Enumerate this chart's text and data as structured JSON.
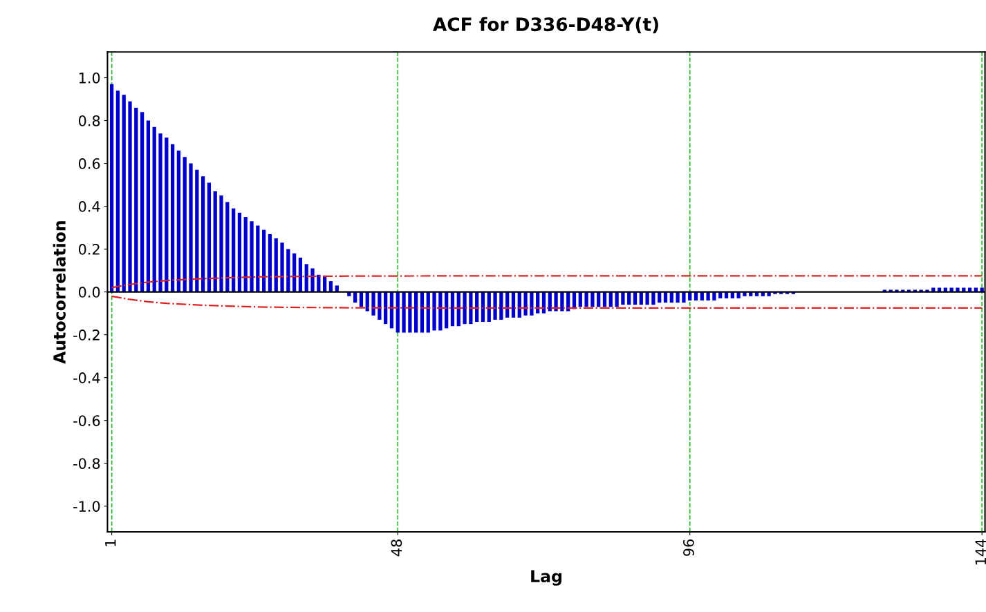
{
  "chart_data": {
    "type": "bar",
    "title": "ACF for D336-D48-Y(t)",
    "xlabel": "Lag",
    "ylabel": "Autocorrelation",
    "x": [
      1,
      2,
      3,
      4,
      5,
      6,
      7,
      8,
      9,
      10,
      11,
      12,
      13,
      14,
      15,
      16,
      17,
      18,
      19,
      20,
      21,
      22,
      23,
      24,
      25,
      26,
      27,
      28,
      29,
      30,
      31,
      32,
      33,
      34,
      35,
      36,
      37,
      38,
      39,
      40,
      41,
      42,
      43,
      44,
      45,
      46,
      47,
      48,
      49,
      50,
      51,
      52,
      53,
      54,
      55,
      56,
      57,
      58,
      59,
      60,
      61,
      62,
      63,
      64,
      65,
      66,
      67,
      68,
      69,
      70,
      71,
      72,
      73,
      74,
      75,
      76,
      77,
      78,
      79,
      80,
      81,
      82,
      83,
      84,
      85,
      86,
      87,
      88,
      89,
      90,
      91,
      92,
      93,
      94,
      95,
      96,
      97,
      98,
      99,
      100,
      101,
      102,
      103,
      104,
      105,
      106,
      107,
      108,
      109,
      110,
      111,
      112,
      113,
      114,
      115,
      116,
      117,
      118,
      119,
      120,
      121,
      122,
      123,
      124,
      125,
      126,
      127,
      128,
      129,
      130,
      131,
      132,
      133,
      134,
      135,
      136,
      137,
      138,
      139,
      140,
      141,
      142,
      143,
      144
    ],
    "series": [
      {
        "color": "#0000cc",
        "values": [
          0.97,
          0.94,
          0.92,
          0.89,
          0.86,
          0.84,
          0.8,
          0.77,
          0.74,
          0.72,
          0.69,
          0.66,
          0.63,
          0.6,
          0.57,
          0.54,
          0.51,
          0.47,
          0.45,
          0.42,
          0.39,
          0.37,
          0.35,
          0.33,
          0.31,
          0.29,
          0.27,
          0.25,
          0.23,
          0.2,
          0.18,
          0.16,
          0.13,
          0.11,
          0.08,
          0.07,
          0.05,
          0.03,
          0.0,
          -0.02,
          -0.05,
          -0.07,
          -0.09,
          -0.11,
          -0.13,
          -0.15,
          -0.17,
          -0.19,
          -0.19,
          -0.19,
          -0.19,
          -0.19,
          -0.19,
          -0.18,
          -0.18,
          -0.17,
          -0.16,
          -0.16,
          -0.15,
          -0.15,
          -0.14,
          -0.14,
          -0.14,
          -0.13,
          -0.13,
          -0.12,
          -0.12,
          -0.12,
          -0.11,
          -0.11,
          -0.1,
          -0.1,
          -0.09,
          -0.09,
          -0.09,
          -0.09,
          -0.08,
          -0.07,
          -0.07,
          -0.07,
          -0.07,
          -0.07,
          -0.07,
          -0.07,
          -0.06,
          -0.06,
          -0.06,
          -0.06,
          -0.06,
          -0.06,
          -0.05,
          -0.05,
          -0.05,
          -0.05,
          -0.05,
          -0.04,
          -0.04,
          -0.04,
          -0.04,
          -0.04,
          -0.03,
          -0.03,
          -0.03,
          -0.03,
          -0.02,
          -0.02,
          -0.02,
          -0.02,
          -0.02,
          -0.01,
          -0.01,
          -0.01,
          -0.01,
          0.0,
          0.0,
          0.0,
          0.0,
          0.0,
          0.0,
          0.0,
          0.0,
          0.0,
          0.0,
          0.0,
          0.0,
          0.0,
          0.0,
          0.01,
          0.01,
          0.01,
          0.01,
          0.01,
          0.01,
          0.01,
          0.01,
          0.02,
          0.02,
          0.02,
          0.02,
          0.02,
          0.02,
          0.02,
          0.02,
          0.02
        ]
      },
      {
        "type": "line",
        "color": "#dd2222",
        "line_style": "dashed",
        "x": [
          1,
          4,
          7,
          10,
          13,
          16,
          20,
          25,
          30,
          40,
          60,
          144
        ],
        "values": [
          0.02,
          0.035,
          0.046,
          0.053,
          0.058,
          0.062,
          0.066,
          0.07,
          0.072,
          0.074,
          0.075,
          0.075
        ]
      },
      {
        "type": "line",
        "color": "#dd2222",
        "line_style": "dashed",
        "x": [
          1,
          4,
          7,
          10,
          13,
          16,
          20,
          25,
          30,
          40,
          60,
          144
        ],
        "values": [
          -0.02,
          -0.035,
          -0.046,
          -0.053,
          -0.058,
          -0.062,
          -0.066,
          -0.07,
          -0.072,
          -0.074,
          -0.075,
          -0.075
        ]
      }
    ],
    "ref_lines": [
      {
        "axis": "y",
        "value": 0,
        "color": "#000000"
      }
    ],
    "xlim": [
      0.3,
      144.5
    ],
    "xticks": [
      1,
      48,
      96,
      144
    ],
    "ylim": [
      -1.12,
      1.12
    ],
    "yticks": [
      {
        "value": -1,
        "label": "-1.0"
      },
      {
        "value": -0.8,
        "label": "-0.8"
      },
      {
        "value": -0.6,
        "label": "-0.6"
      },
      {
        "value": -0.4,
        "label": "-0.4"
      },
      {
        "value": -0.2,
        "label": "-0.2"
      },
      {
        "value": 0,
        "label": "0.0"
      },
      {
        "value": 0.2,
        "label": "0.2"
      },
      {
        "value": 0.4,
        "label": "0.4"
      },
      {
        "value": 0.6,
        "label": "0.6"
      },
      {
        "value": 0.8,
        "label": "0.8"
      },
      {
        "value": 1,
        "label": "1.0"
      }
    ],
    "grid": "x"
  }
}
